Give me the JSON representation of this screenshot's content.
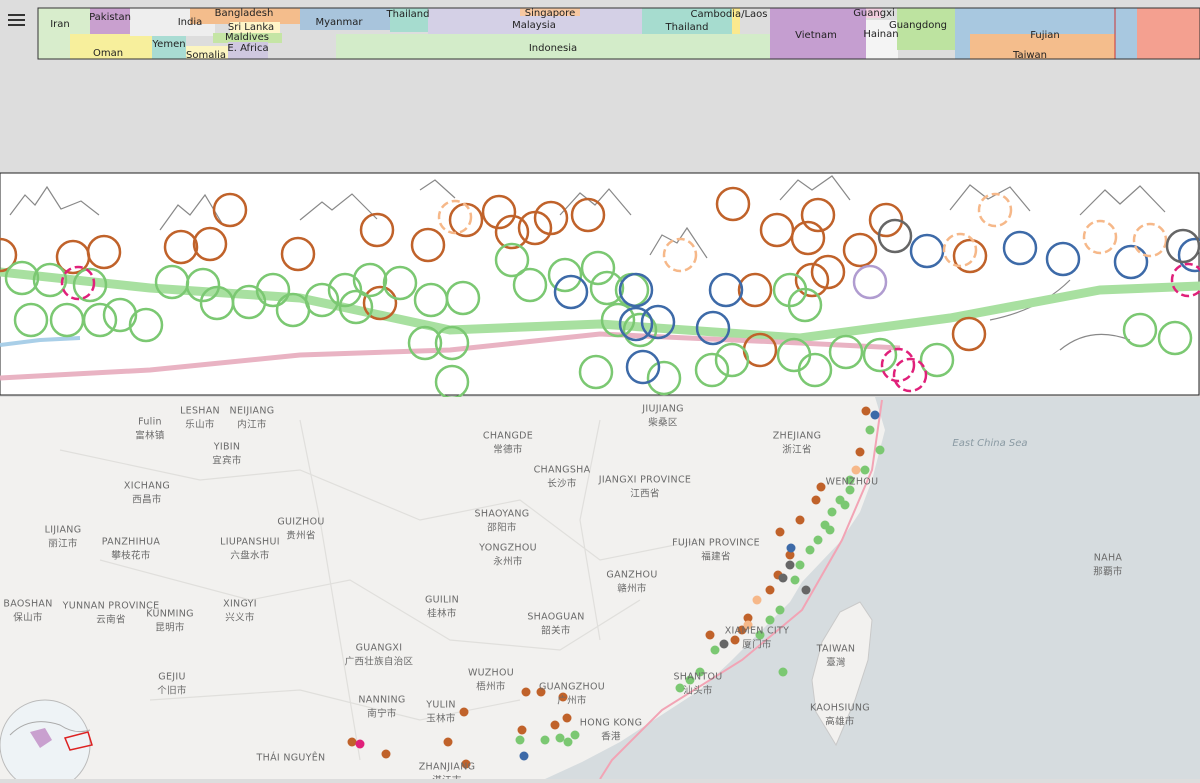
{
  "timeline": {
    "regions": [
      {
        "label": "Iran",
        "color": "#d8edcc"
      },
      {
        "label": "Oman",
        "color": "#f7ef9c"
      },
      {
        "label": "Pakistan",
        "color": "#c9a0cf"
      },
      {
        "label": "India",
        "color": "#eeeeee"
      },
      {
        "label": "Yemen",
        "color": "#a9dcd3"
      },
      {
        "label": "Somalia",
        "color": "#fcf5c0"
      },
      {
        "label": "Bangladesh",
        "color": "#f4bd8c"
      },
      {
        "label": "Sri Lanka",
        "color": "#fff5c8"
      },
      {
        "label": "Maldives",
        "color": "#c5e5a5"
      },
      {
        "label": "E. Africa",
        "color": "#cfc8e0"
      },
      {
        "label": "Myanmar",
        "color": "#a8c4dc"
      },
      {
        "label": "Thailand",
        "color": "#a6dccf"
      },
      {
        "label": "Indonesia",
        "color": "#d3ecc9"
      },
      {
        "label": "Malaysia",
        "color": "#d4d0e6"
      },
      {
        "label": "Singapore",
        "color": "#f7c8a1"
      },
      {
        "label": "Thailand",
        "color": "#a6dccf"
      },
      {
        "label": "Cambodia/Laos",
        "color": "#fbe98e"
      },
      {
        "label": "Vietnam",
        "color": "#c59ed0"
      },
      {
        "label": "Guangxi",
        "color": "#f3cde0"
      },
      {
        "label": "Hainan",
        "color": "#f4f4f4"
      },
      {
        "label": "Guangdong",
        "color": "#bde3a0"
      },
      {
        "label": "Fujian",
        "color": "#a8c8e0"
      },
      {
        "label": "Taiwan",
        "color": "#f4bd8c"
      }
    ]
  },
  "map": {
    "sea_label": "East China Sea",
    "labels": [
      {
        "name": "LESHAN",
        "local": "乐山市"
      },
      {
        "name": "NEIJIANG",
        "local": "内江市"
      },
      {
        "name": "Fulin",
        "local": "富林镇"
      },
      {
        "name": "YIBIN",
        "local": "宜宾市"
      },
      {
        "name": "CHANGDE",
        "local": "常德市"
      },
      {
        "name": "JIUJIANG",
        "local": "柴桑区"
      },
      {
        "name": "ZHEJIANG",
        "local": "浙江省"
      },
      {
        "name": "CHANGSHA",
        "local": "长沙市"
      },
      {
        "name": "JIANGXI PROVINCE",
        "local": "江西省"
      },
      {
        "name": "WENZHOU"
      },
      {
        "name": "XICHANG",
        "local": "西昌市"
      },
      {
        "name": "SHAOYANG",
        "local": "邵阳市"
      },
      {
        "name": "LIJIANG",
        "local": "丽江市"
      },
      {
        "name": "PANZHIHUA",
        "local": "攀枝花市"
      },
      {
        "name": "LIUPANSHUI",
        "local": "六盘水市"
      },
      {
        "name": "GUIZHOU",
        "local": "贵州省"
      },
      {
        "name": "YONGZHOU",
        "local": "永州市"
      },
      {
        "name": "FUJIAN PROVINCE",
        "local": "福建省"
      },
      {
        "name": "NAHA",
        "local": "那覇市"
      },
      {
        "name": "BAOSHAN",
        "local": "保山市"
      },
      {
        "name": "YUNNAN PROVINCE",
        "local": "云南省"
      },
      {
        "name": "KUNMING",
        "local": "昆明市"
      },
      {
        "name": "XINGYI",
        "local": "兴义市"
      },
      {
        "name": "GUILIN",
        "local": "桂林市"
      },
      {
        "name": "GANZHOU",
        "local": "赣州市"
      },
      {
        "name": "SHAOGUAN",
        "local": "韶关市"
      },
      {
        "name": "XIAMEN CITY",
        "local": "厦门市"
      },
      {
        "name": "TAIWAN",
        "local": "臺灣"
      },
      {
        "name": "GUANGXI",
        "local": "广西壮族自治区"
      },
      {
        "name": "GEJIU",
        "local": "个旧市"
      },
      {
        "name": "WUZHOU",
        "local": "梧州市"
      },
      {
        "name": "GUANGZHOU",
        "local": "广州市"
      },
      {
        "name": "SHANTOU",
        "local": "汕头市"
      },
      {
        "name": "KAOHSIUNG",
        "local": "高雄市"
      },
      {
        "name": "NANNING",
        "local": "南宁市"
      },
      {
        "name": "YULIN",
        "local": "玉林市"
      },
      {
        "name": "HONG KONG",
        "local": "香港"
      },
      {
        "name": "THÁI NGUYÊN"
      },
      {
        "name": "ZHANJIANG",
        "local": "湛江市"
      }
    ]
  }
}
